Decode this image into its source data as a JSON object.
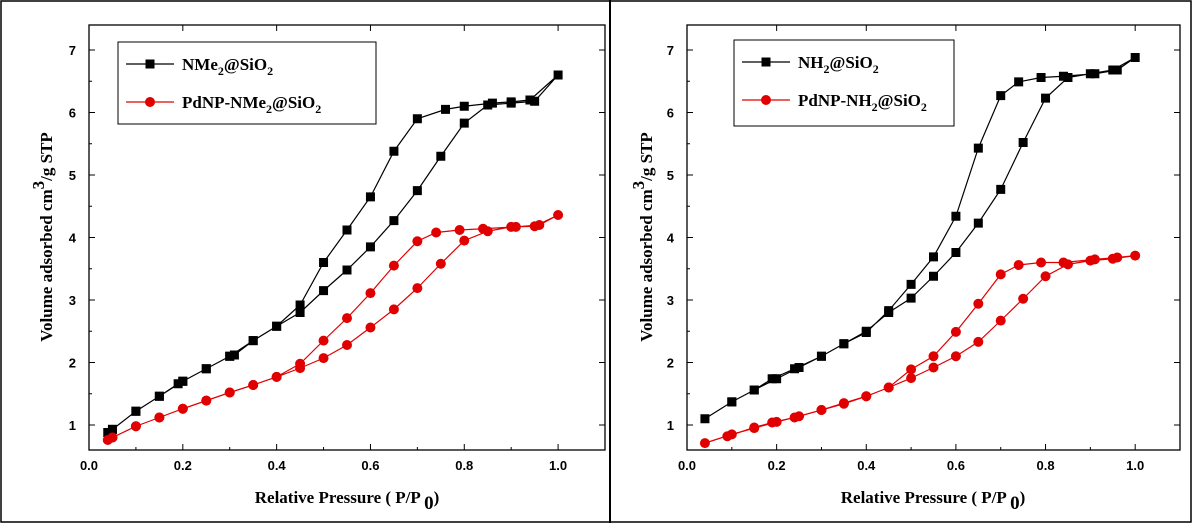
{
  "chart_data": [
    {
      "type": "line",
      "xlabel": "Relative Pressure ( P/P",
      "xlabel_sub": "0",
      "xlabel_end": ")",
      "ylabel": "Volume adsorbed cm",
      "ylabel_sup": "3",
      "ylabel_end": "/g STP",
      "xlim": [
        0.0,
        1.1
      ],
      "ylim": [
        0.6,
        7.4
      ],
      "xticks": [
        "0.0",
        "0.2",
        "0.4",
        "0.6",
        "0.8",
        "1.0"
      ],
      "yticks": [
        "1",
        "2",
        "3",
        "4",
        "5",
        "6",
        "7"
      ],
      "legend_position": "top-left",
      "series": [
        {
          "name": "NMe2@SiO2",
          "legend_main": "NMe",
          "legend_sub1": "2",
          "legend_mid": "@SiO",
          "legend_sub2": "2",
          "color": "#000000",
          "marker": "square",
          "x": [
            0.04,
            0.05,
            0.1,
            0.15,
            0.19,
            0.2,
            0.25,
            0.3,
            0.31,
            0.35,
            0.4,
            0.45,
            0.5,
            0.55,
            0.6,
            0.65,
            0.7,
            0.75,
            0.8,
            0.85,
            0.9,
            0.95,
            1.0,
            0.94,
            0.9,
            0.86,
            0.8,
            0.76,
            0.7,
            0.65,
            0.6,
            0.55,
            0.5,
            0.45,
            0.4,
            0.35,
            0.3,
            0.25,
            0.2,
            0.15,
            0.1,
            0.05
          ],
          "y": [
            0.88,
            0.93,
            1.22,
            1.46,
            1.66,
            1.7,
            1.9,
            2.1,
            2.12,
            2.35,
            2.58,
            2.8,
            3.15,
            3.48,
            3.85,
            4.27,
            4.75,
            5.3,
            5.83,
            6.12,
            6.15,
            6.18,
            6.6,
            6.2,
            6.17,
            6.15,
            6.1,
            6.05,
            5.9,
            5.38,
            4.65,
            4.12,
            3.6,
            2.92,
            2.58,
            2.35,
            2.1,
            1.9,
            1.7,
            1.46,
            1.22,
            0.93
          ]
        },
        {
          "name": "PdNP-NMe2@SiO2",
          "legend_main": "PdNP-NMe",
          "legend_sub1": "2",
          "legend_mid": "@SiO",
          "legend_sub2": "2",
          "color": "#e00000",
          "marker": "circle",
          "x": [
            0.04,
            0.05,
            0.1,
            0.15,
            0.2,
            0.25,
            0.3,
            0.35,
            0.4,
            0.45,
            0.5,
            0.55,
            0.6,
            0.65,
            0.7,
            0.75,
            0.8,
            0.85,
            0.9,
            0.95,
            1.0,
            0.96,
            0.91,
            0.84,
            0.79,
            0.74,
            0.7,
            0.65,
            0.6,
            0.55,
            0.5,
            0.45,
            0.4,
            0.35,
            0.3,
            0.25,
            0.2,
            0.15,
            0.1,
            0.05
          ],
          "y": [
            0.76,
            0.8,
            0.98,
            1.12,
            1.26,
            1.39,
            1.52,
            1.64,
            1.77,
            1.91,
            2.07,
            2.28,
            2.56,
            2.85,
            3.19,
            3.58,
            3.95,
            4.1,
            4.17,
            4.18,
            4.36,
            4.2,
            4.17,
            4.14,
            4.12,
            4.08,
            3.94,
            3.55,
            3.11,
            2.71,
            2.35,
            1.98,
            1.77,
            1.64,
            1.52,
            1.39,
            1.26,
            1.12,
            0.98,
            0.8
          ]
        }
      ]
    },
    {
      "type": "line",
      "xlabel": "Relative Pressure ( P/P",
      "xlabel_sub": "0",
      "xlabel_end": ")",
      "ylabel": "Volume adsorbed cm",
      "ylabel_sup": "3",
      "ylabel_end": "/g STP",
      "xlim": [
        0.0,
        1.1
      ],
      "ylim": [
        0.6,
        7.4
      ],
      "xticks": [
        "0.0",
        "0.2",
        "0.4",
        "0.6",
        "0.8",
        "1.0"
      ],
      "yticks": [
        "1",
        "2",
        "3",
        "4",
        "5",
        "6",
        "7"
      ],
      "legend_position": "top-left",
      "series": [
        {
          "name": "NH2@SiO2",
          "legend_main": "NH",
          "legend_sub1": "2",
          "legend_mid": "@SiO",
          "legend_sub2": "2",
          "color": "#000000",
          "marker": "square",
          "x": [
            0.04,
            0.1,
            0.15,
            0.2,
            0.25,
            0.3,
            0.35,
            0.4,
            0.45,
            0.5,
            0.55,
            0.6,
            0.65,
            0.7,
            0.75,
            0.8,
            0.85,
            0.9,
            0.95,
            1.0,
            0.96,
            0.91,
            0.84,
            0.79,
            0.74,
            0.7,
            0.65,
            0.6,
            0.55,
            0.5,
            0.45,
            0.4,
            0.35,
            0.3,
            0.24,
            0.19,
            0.15,
            0.1
          ],
          "y": [
            1.1,
            1.37,
            1.56,
            1.74,
            1.92,
            2.1,
            2.3,
            2.5,
            2.8,
            3.03,
            3.38,
            3.76,
            4.23,
            4.77,
            5.52,
            6.23,
            6.56,
            6.62,
            6.68,
            6.88,
            6.68,
            6.62,
            6.58,
            6.56,
            6.49,
            6.27,
            5.43,
            4.34,
            3.69,
            3.25,
            2.83,
            2.48,
            2.3,
            2.1,
            1.9,
            1.74,
            1.56,
            1.37
          ]
        },
        {
          "name": "PdNP-NH2@SiO2",
          "legend_main": "PdNP-NH",
          "legend_sub1": "2",
          "legend_mid": "@SiO",
          "legend_sub2": "2",
          "color": "#e00000",
          "marker": "circle",
          "x": [
            0.04,
            0.1,
            0.15,
            0.2,
            0.25,
            0.3,
            0.35,
            0.4,
            0.45,
            0.5,
            0.55,
            0.6,
            0.65,
            0.7,
            0.75,
            0.8,
            0.85,
            0.9,
            0.95,
            1.0,
            0.96,
            0.91,
            0.84,
            0.79,
            0.74,
            0.7,
            0.65,
            0.6,
            0.55,
            0.5,
            0.45,
            0.4,
            0.35,
            0.3,
            0.24,
            0.19,
            0.15,
            0.09
          ],
          "y": [
            0.71,
            0.85,
            0.95,
            1.05,
            1.14,
            1.24,
            1.35,
            1.46,
            1.6,
            1.75,
            1.92,
            2.1,
            2.33,
            2.67,
            3.02,
            3.38,
            3.57,
            3.63,
            3.66,
            3.71,
            3.68,
            3.65,
            3.6,
            3.6,
            3.56,
            3.41,
            2.94,
            2.49,
            2.1,
            1.89,
            1.6,
            1.46,
            1.34,
            1.24,
            1.12,
            1.04,
            0.96,
            0.82
          ]
        }
      ]
    }
  ]
}
